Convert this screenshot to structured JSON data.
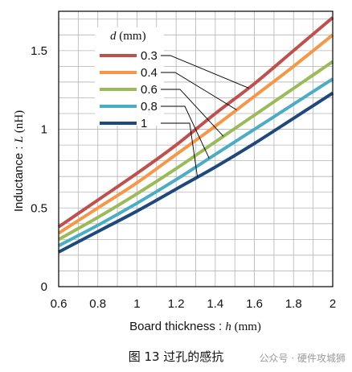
{
  "chart_data": {
    "type": "line",
    "xlabel_main": "Board thickness : ",
    "xlabel_var": "h",
    "xlabel_unit": " (mm)",
    "ylabel_main": "Inductance : ",
    "ylabel_var": "L",
    "ylabel_unit": " (nH)",
    "xlim": [
      0.6,
      2.0
    ],
    "ylim": [
      0,
      1.75
    ],
    "xticks": [
      0.6,
      0.8,
      1.0,
      1.2,
      1.4,
      1.6,
      1.8,
      2.0
    ],
    "xtick_labels": [
      "0.6",
      "0.8",
      "1",
      "1.2",
      "1.4",
      "1.6",
      "1.8",
      "2"
    ],
    "yticks": [
      0,
      0.5,
      1.0,
      1.5
    ],
    "ytick_labels": [
      "0",
      "0.5",
      "1",
      "1.5"
    ],
    "grid": true,
    "legend_title_var": "d",
    "legend_title_unit": " (mm)",
    "legend_placement": "top-left",
    "series": [
      {
        "name": "0.3",
        "color": "#c0504d",
        "x": [
          0.6,
          0.8,
          1.0,
          1.2,
          1.4,
          1.6,
          1.8,
          2.0
        ],
        "y": [
          0.38,
          0.55,
          0.72,
          0.9,
          1.1,
          1.29,
          1.5,
          1.71
        ]
      },
      {
        "name": "0.4",
        "color": "#f79646",
        "x": [
          0.6,
          0.8,
          1.0,
          1.2,
          1.4,
          1.6,
          1.8,
          2.0
        ],
        "y": [
          0.34,
          0.5,
          0.66,
          0.84,
          1.02,
          1.21,
          1.4,
          1.6
        ]
      },
      {
        "name": "0.6",
        "color": "#9bbb59",
        "x": [
          0.6,
          0.8,
          1.0,
          1.2,
          1.4,
          1.6,
          1.8,
          2.0
        ],
        "y": [
          0.3,
          0.44,
          0.59,
          0.75,
          0.92,
          1.09,
          1.26,
          1.43
        ]
      },
      {
        "name": "0.8",
        "color": "#4bacc6",
        "x": [
          0.6,
          0.8,
          1.0,
          1.2,
          1.4,
          1.6,
          1.8,
          2.0
        ],
        "y": [
          0.26,
          0.39,
          0.53,
          0.68,
          0.84,
          1.0,
          1.16,
          1.32
        ]
      },
      {
        "name": "1",
        "color": "#1f497d",
        "x": [
          0.6,
          0.8,
          1.0,
          1.2,
          1.4,
          1.6,
          1.8,
          2.0
        ],
        "y": [
          0.22,
          0.35,
          0.48,
          0.62,
          0.76,
          0.91,
          1.07,
          1.23
        ]
      }
    ]
  },
  "caption": "图 13  过孔的感抗",
  "watermark": "公众号 · 硬件攻城狮"
}
